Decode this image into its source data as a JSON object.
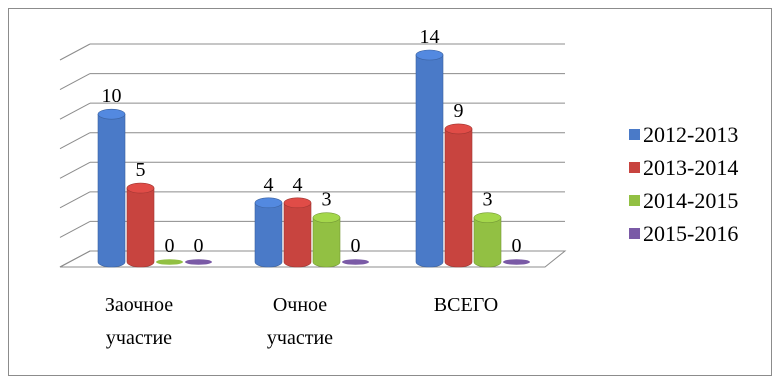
{
  "chart_data": {
    "type": "bar",
    "categories": [
      "Заочное участие",
      "Очное участие",
      "ВСЕГО"
    ],
    "category_lines": [
      [
        "Заочное",
        "участие"
      ],
      [
        "Очное",
        "участие"
      ],
      [
        "ВСЕГО"
      ]
    ],
    "series": [
      {
        "name": "2012-2013",
        "values": [
          10,
          4,
          14
        ],
        "color": "#4a7ac8"
      },
      {
        "name": "2013-2014",
        "values": [
          5,
          4,
          9
        ],
        "color": "#c8443f"
      },
      {
        "name": "2014-2015",
        "values": [
          0,
          3,
          3
        ],
        "color": "#92c043"
      },
      {
        "name": "2015-2016",
        "values": [
          0,
          0,
          0
        ],
        "color": "#7a5aa6"
      }
    ],
    "ylim": [
      0,
      14
    ],
    "grid": true,
    "legend_position": "right",
    "title": "",
    "xlabel": "",
    "ylabel": ""
  }
}
